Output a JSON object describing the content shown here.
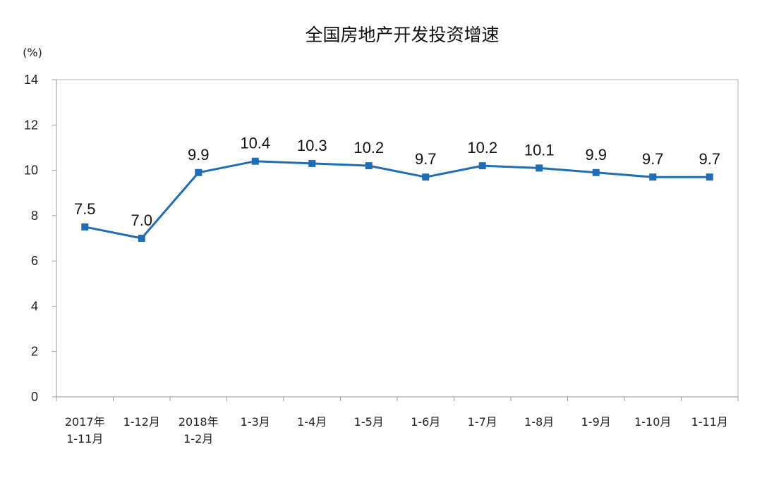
{
  "chart_data": {
    "type": "line",
    "title": "全国房地产开发投资增速",
    "ylabel": "(%)",
    "xlabel": "",
    "ylim": [
      0,
      14
    ],
    "yticks": [
      0,
      2,
      4,
      6,
      8,
      10,
      12,
      14
    ],
    "categories": [
      [
        "2017年",
        "1-11月"
      ],
      [
        "1-12月"
      ],
      [
        "2018年",
        "1-2月"
      ],
      [
        "1-3月"
      ],
      [
        "1-4月"
      ],
      [
        "1-5月"
      ],
      [
        "1-6月"
      ],
      [
        "1-7月"
      ],
      [
        "1-8月"
      ],
      [
        "1-9月"
      ],
      [
        "1-10月"
      ],
      [
        "1-11月"
      ]
    ],
    "values": [
      7.5,
      7.0,
      9.9,
      10.4,
      10.3,
      10.2,
      9.7,
      10.2,
      10.1,
      9.9,
      9.7,
      9.7
    ],
    "data_labels": [
      "7.5",
      "7.0",
      "9.9",
      "10.4",
      "10.3",
      "10.2",
      "9.7",
      "10.2",
      "10.1",
      "9.9",
      "9.7",
      "9.7"
    ],
    "line_color": "#1f6db5",
    "grid": false,
    "legend": "none"
  }
}
